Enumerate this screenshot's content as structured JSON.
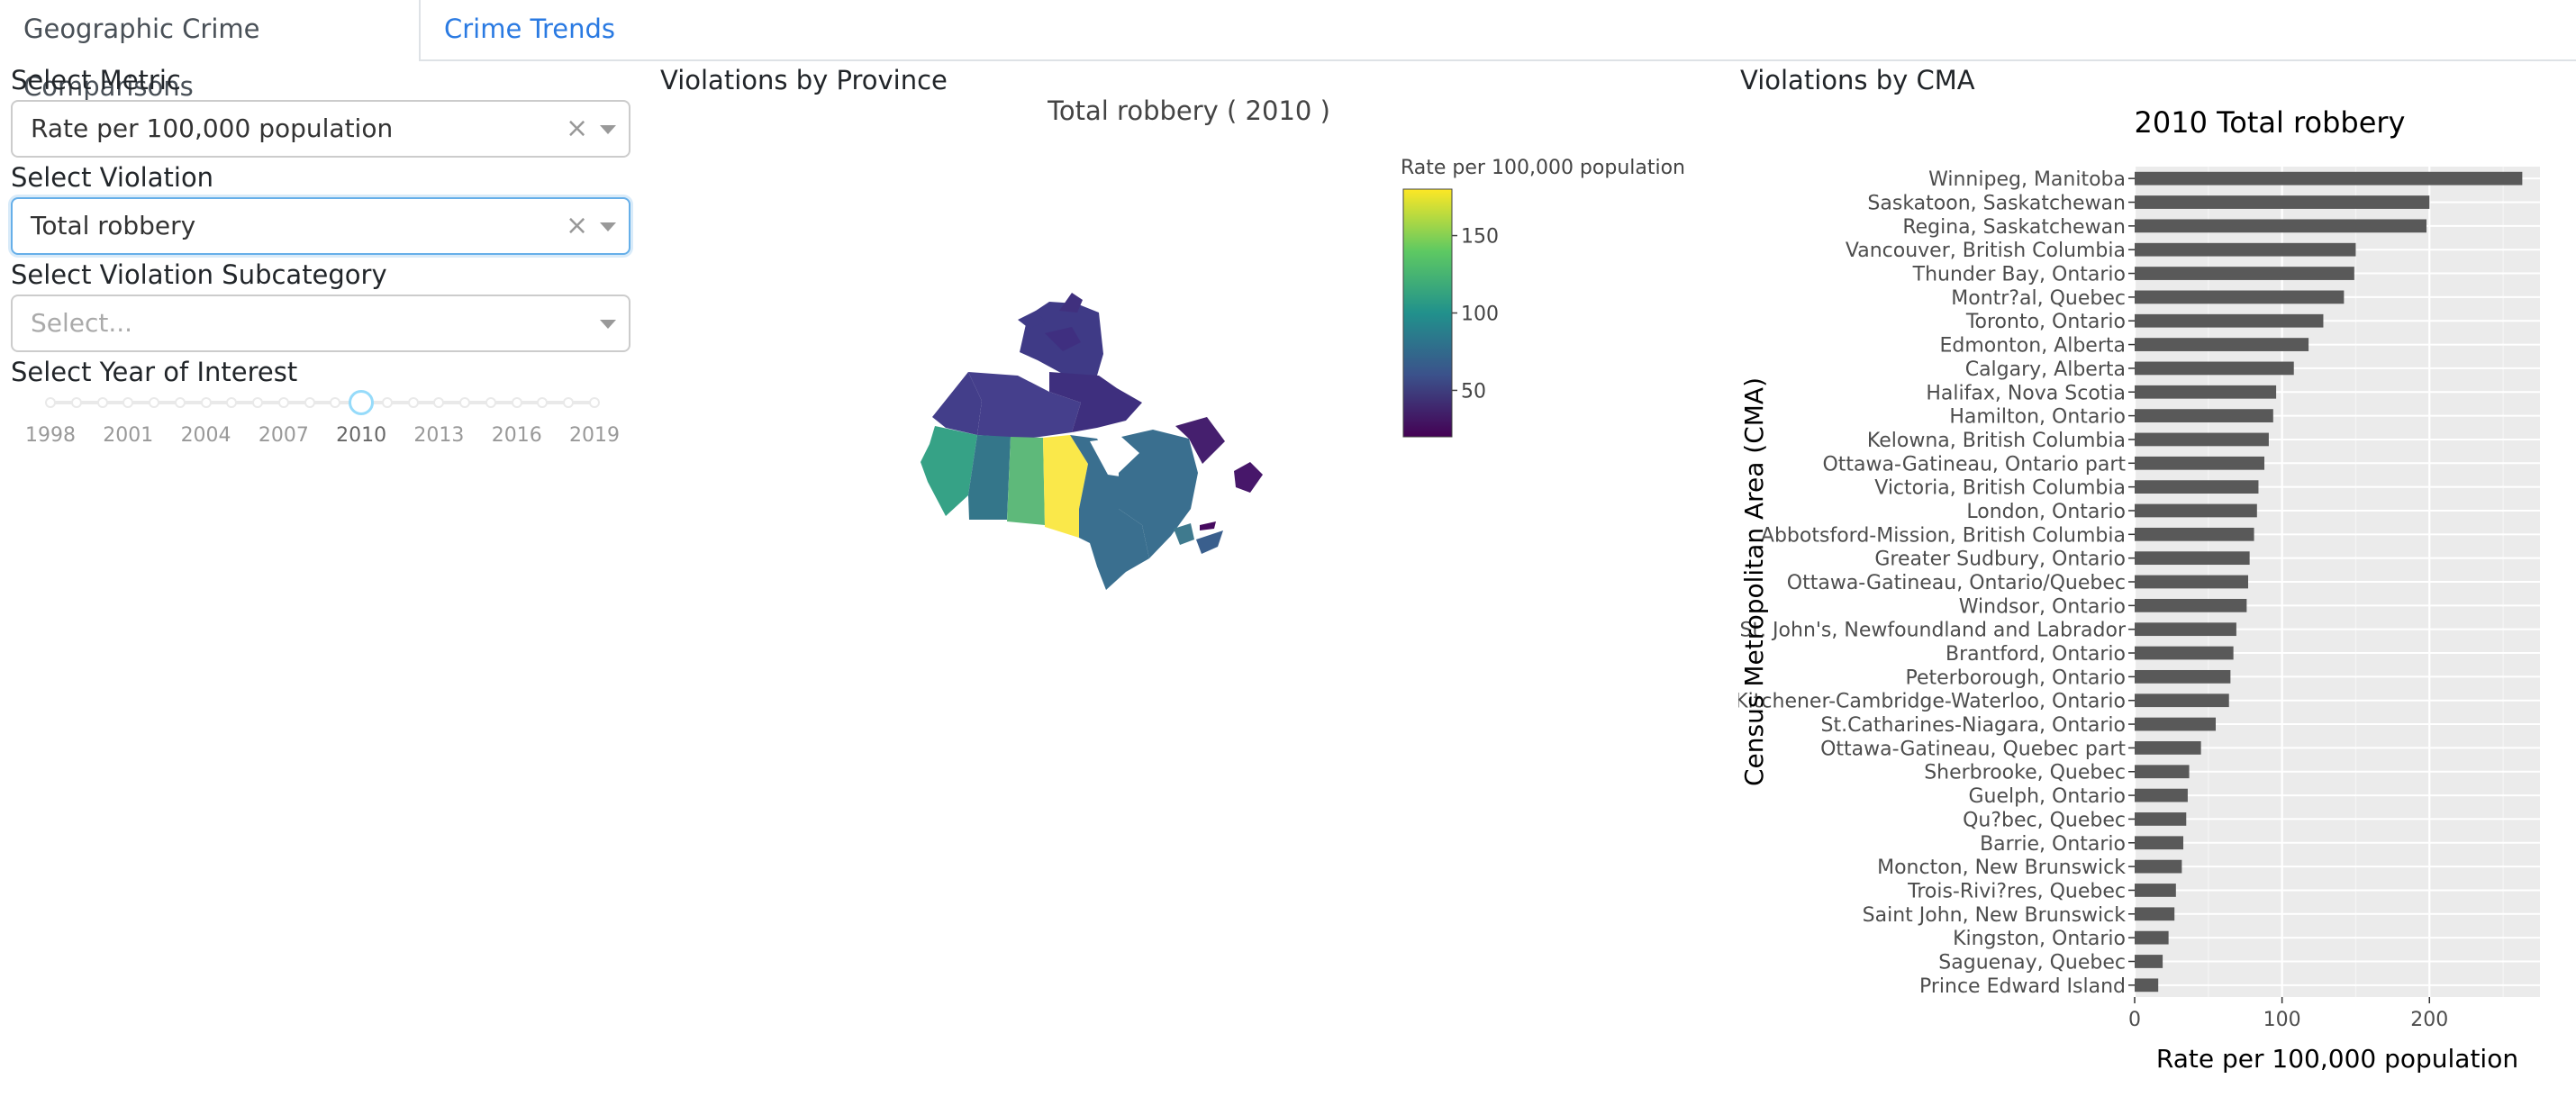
{
  "tabs": [
    {
      "label": "Geographic Crime Comparisons",
      "active": true
    },
    {
      "label": "Crime Trends",
      "active": false
    }
  ],
  "controls": {
    "metric": {
      "label": "Select Metric",
      "value": "Rate per 100,000 population"
    },
    "violation": {
      "label": "Select Violation",
      "value": "Total robbery"
    },
    "subcategory": {
      "label": "Select Violation Subcategory",
      "placeholder": "Select..."
    },
    "year": {
      "label": "Select Year of Interest",
      "marks": [
        "1998",
        "2001",
        "2004",
        "2007",
        "2010",
        "2013",
        "2016",
        "2019"
      ],
      "selected": "2010",
      "min": 1998,
      "max": 2019
    }
  },
  "province_panel": {
    "heading": "Violations by Province",
    "map_title": "Total robbery ( 2010 )",
    "colorbar_title": "Rate per 100,000 population",
    "colorbar_ticks": [
      "150",
      "100",
      "50"
    ]
  },
  "cma_panel": {
    "heading": "Violations by CMA",
    "chart_data": {
      "type": "bar",
      "orientation": "horizontal",
      "title": "2010 Total robbery",
      "xlabel": "Rate per 100,000 population",
      "ylabel": "Census Metropolitan Area (CMA)",
      "xlim": [
        0,
        275
      ],
      "xticks": [
        "0",
        "100",
        "200"
      ],
      "bar_color": "#595959",
      "panel_bg": "#ebebeb",
      "categories": [
        "Winnipeg, Manitoba",
        "Saskatoon, Saskatchewan",
        "Regina, Saskatchewan",
        "Vancouver, British Columbia",
        "Thunder Bay, Ontario",
        "Montr?al, Quebec",
        "Toronto, Ontario",
        "Edmonton, Alberta",
        "Calgary, Alberta",
        "Halifax, Nova Scotia",
        "Hamilton, Ontario",
        "Kelowna, British Columbia",
        "Ottawa-Gatineau, Ontario part",
        "Victoria, British Columbia",
        "London, Ontario",
        "Abbotsford-Mission, British Columbia",
        "Greater Sudbury, Ontario",
        "Ottawa-Gatineau, Ontario/Quebec",
        "Windsor, Ontario",
        "St. John's, Newfoundland and Labrador",
        "Brantford, Ontario",
        "Peterborough, Ontario",
        "Kitchener-Cambridge-Waterloo, Ontario",
        "St.Catharines-Niagara, Ontario",
        "Ottawa-Gatineau, Quebec part",
        "Sherbrooke, Quebec",
        "Guelph, Ontario",
        "Qu?bec, Quebec",
        "Barrie, Ontario",
        "Moncton, New Brunswick",
        "Trois-Rivi?res, Quebec",
        "Saint John, New Brunswick",
        "Kingston, Ontario",
        "Saguenay, Quebec",
        "Prince Edward Island"
      ],
      "values": [
        263,
        200,
        198,
        150,
        149,
        142,
        128,
        118,
        108,
        96,
        94,
        91,
        88,
        84,
        83,
        81,
        78,
        77,
        76,
        69,
        67,
        65,
        64,
        55,
        45,
        37,
        36,
        35,
        33,
        32,
        28,
        27,
        23,
        19,
        16
      ]
    }
  }
}
